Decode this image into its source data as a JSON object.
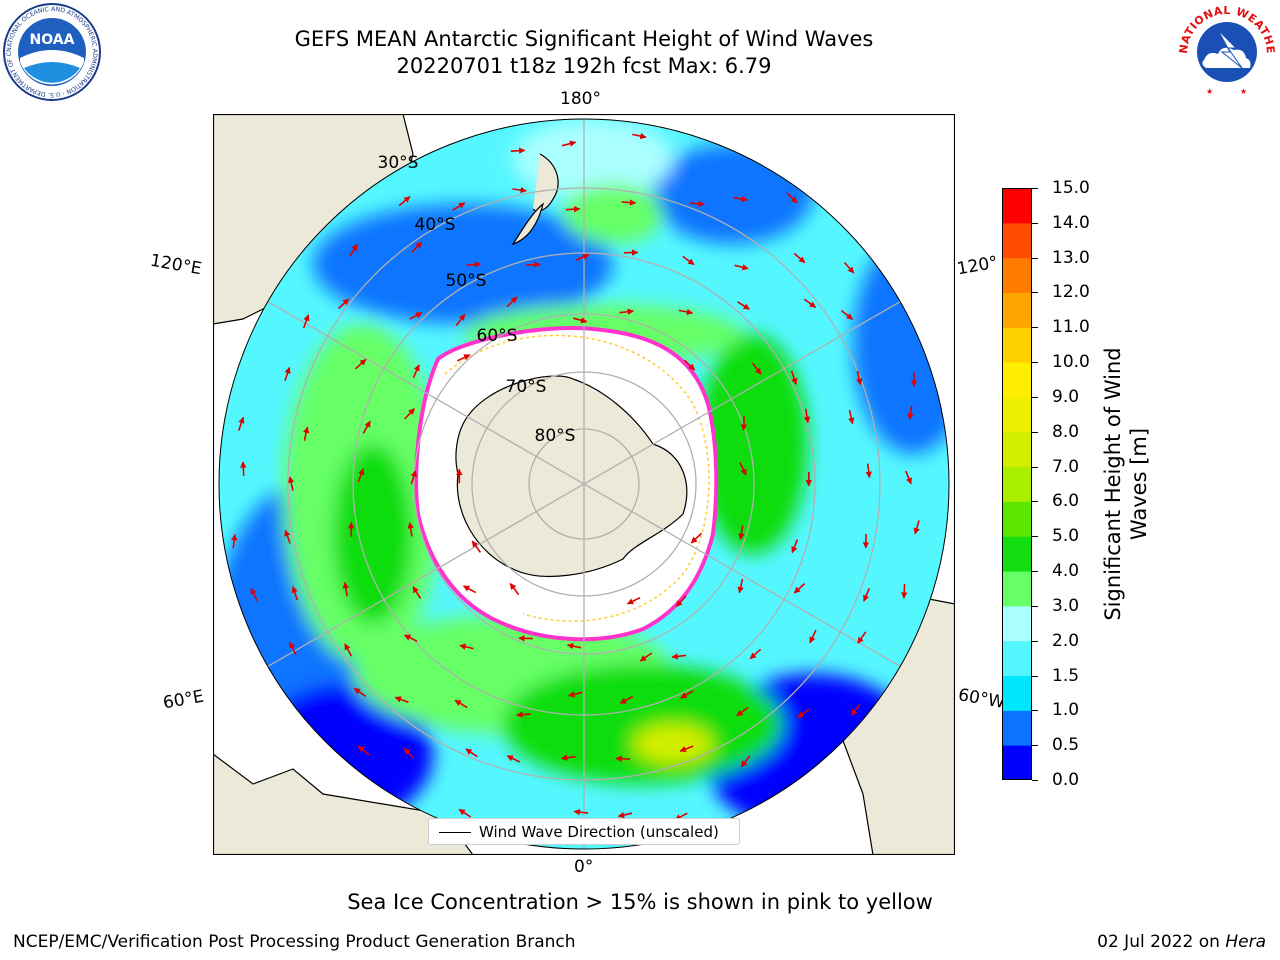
{
  "header": {
    "title_line1": "GEFS MEAN Antarctic Significant Height of Wind Waves",
    "title_line2": "20220701 t18z 192h fcst   Max: 6.79"
  },
  "logos": {
    "noaa": {
      "icon": "noaa-logo",
      "text": "NOAA",
      "ring": "NATIONAL OCEANIC AND ATMOSPHERIC ADMINISTRATION · U.S. DEPARTMENT OF COMMERCE"
    },
    "nws": {
      "icon": "nws-logo",
      "ring": "NATIONAL WEATHER SERVICE"
    }
  },
  "map": {
    "longitude_labels": {
      "top": "180°",
      "bottom": "0°",
      "left_upper": "120°E",
      "left_lower": "60°E",
      "right_upper": "120°",
      "right_lower": "60°W"
    },
    "latitude_labels": [
      "30°S",
      "40°S",
      "50°S",
      "60°S",
      "70°S",
      "80°S"
    ],
    "legend_label": "Wind Wave Direction (unscaled)",
    "colors": {
      "land": "#ede9d8",
      "ice_edge": "#ff33cc",
      "ice_fringe": "#ffcc33",
      "arrow": "#e00000",
      "grid": "#b0b0b0"
    }
  },
  "colorbar": {
    "label": "Significant Height of Wind Waves [m]",
    "ticks": [
      "0.0",
      "0.5",
      "1.0",
      "1.5",
      "2.0",
      "3.0",
      "4.0",
      "5.0",
      "6.0",
      "7.0",
      "8.0",
      "9.0",
      "10.0",
      "11.0",
      "12.0",
      "13.0",
      "14.0",
      "15.0"
    ],
    "colors": [
      "#0000ff",
      "#0a74ff",
      "#00e6ff",
      "#55f7ff",
      "#aaffff",
      "#66ff66",
      "#11dd11",
      "#5ce600",
      "#aaee00",
      "#d4ee00",
      "#eeee00",
      "#ffee00",
      "#ffd000",
      "#ffa500",
      "#ff7c00",
      "#ff4c00",
      "#ff0000"
    ]
  },
  "footer": {
    "sea_ice_note": "Sea Ice Concentration > 15% is shown in pink to yellow",
    "credit": "NCEP/EMC/Verification Post Processing Product Generation Branch",
    "date": "02 Jul 2022 on",
    "host": "Hera"
  }
}
